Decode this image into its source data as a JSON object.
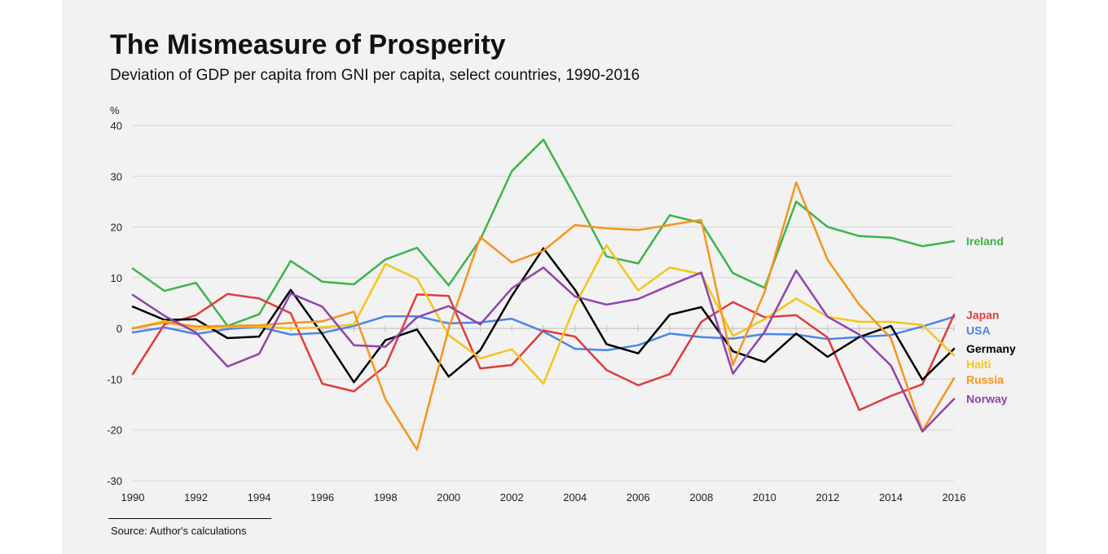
{
  "chart_data": {
    "type": "line",
    "title": "The Mismeasure of Prosperity",
    "subtitle": "Deviation of GDP per capita from GNI per capita, select countries, 1990-2016",
    "ylabel": "%",
    "xlabel": "",
    "ylim": [
      -30,
      40
    ],
    "yticks": [
      40,
      30,
      20,
      10,
      0,
      -10,
      -20,
      -30
    ],
    "xlim": [
      1990,
      2016
    ],
    "xticks": [
      1990,
      1992,
      1994,
      1996,
      1998,
      2000,
      2002,
      2004,
      2006,
      2008,
      2010,
      2012,
      2014,
      2016
    ],
    "x": [
      1990,
      1991,
      1992,
      1993,
      1994,
      1995,
      1996,
      1997,
      1998,
      1999,
      2000,
      2001,
      2002,
      2003,
      2004,
      2005,
      2006,
      2007,
      2008,
      2009,
      2010,
      2011,
      2012,
      2013,
      2014,
      2015,
      2016
    ],
    "grid": true,
    "legend": "right",
    "series": [
      {
        "name": "Ireland",
        "color": "#3cb44b",
        "values": [
          11.8,
          7.4,
          9.0,
          0.5,
          2.8,
          13.3,
          9.2,
          8.7,
          13.6,
          15.9,
          8.5,
          17.5,
          31.0,
          37.2,
          26.0,
          14.2,
          12.8,
          22.3,
          20.8,
          10.9,
          8.0,
          25.0,
          20.0,
          18.2,
          17.9,
          16.2,
          17.2
        ]
      },
      {
        "name": "USA",
        "color": "#4a86e8",
        "values": [
          -0.8,
          0.2,
          -1.1,
          -0.1,
          0.3,
          -1.2,
          -0.9,
          0.5,
          2.4,
          2.4,
          1.0,
          1.2,
          1.9,
          -0.6,
          -4.0,
          -4.3,
          -3.3,
          -1.0,
          -1.7,
          -2.0,
          -1.1,
          -1.2,
          -2.1,
          -1.7,
          -1.3,
          0.4,
          2.3
        ]
      },
      {
        "name": "Japan",
        "color": "#e03c3c",
        "values": [
          -9.0,
          0.8,
          2.6,
          6.8,
          5.9,
          3.0,
          -10.9,
          -12.4,
          -7.4,
          6.7,
          6.4,
          -7.9,
          -7.2,
          -0.4,
          -1.6,
          -8.2,
          -11.2,
          -9.0,
          1.3,
          5.2,
          2.2,
          2.6,
          -1.8,
          -16.1,
          -13.3,
          -11.0,
          2.7
        ]
      },
      {
        "name": "Germany",
        "color": "#000000",
        "values": [
          4.3,
          1.7,
          1.8,
          -1.9,
          -1.6,
          7.6,
          -1.1,
          -10.6,
          -2.3,
          -0.2,
          -9.5,
          -4.3,
          6.4,
          15.8,
          7.6,
          -3.1,
          -4.9,
          2.7,
          4.2,
          -4.5,
          -6.6,
          -1.0,
          -5.6,
          -1.7,
          0.5,
          -10.1,
          -4.0
        ]
      },
      {
        "name": "Haiti",
        "color": "#f5c518",
        "values": [
          0.0,
          1.5,
          -0.2,
          0.3,
          0.4,
          0.0,
          0.2,
          0.8,
          12.7,
          9.8,
          -1.3,
          -5.9,
          -4.1,
          -10.9,
          4.5,
          16.4,
          7.5,
          12.0,
          10.7,
          -1.5,
          1.8,
          5.9,
          2.3,
          1.3,
          1.3,
          0.7,
          -5.3
        ]
      },
      {
        "name": "Russia",
        "color": "#f7941d",
        "values": [
          0.0,
          1.2,
          0.4,
          0.5,
          0.6,
          1.1,
          1.4,
          3.3,
          -14.0,
          -23.9,
          0.0,
          18.0,
          13.0,
          15.3,
          20.4,
          19.7,
          19.4,
          20.4,
          21.4,
          -7.2,
          7.1,
          28.8,
          13.5,
          4.7,
          -1.9,
          -20.2,
          -9.8
        ]
      },
      {
        "name": "Norway",
        "color": "#8e44ad",
        "values": [
          6.6,
          2.5,
          -0.8,
          -7.5,
          -5.0,
          6.9,
          4.3,
          -3.3,
          -3.6,
          2.2,
          4.4,
          0.8,
          7.9,
          12.0,
          6.3,
          4.7,
          5.8,
          8.5,
          11.0,
          -8.9,
          -0.7,
          11.4,
          2.3,
          -1.2,
          -7.3,
          -20.3,
          -13.9
        ]
      }
    ]
  },
  "footer": {
    "source": "Source: Author's calculations"
  }
}
